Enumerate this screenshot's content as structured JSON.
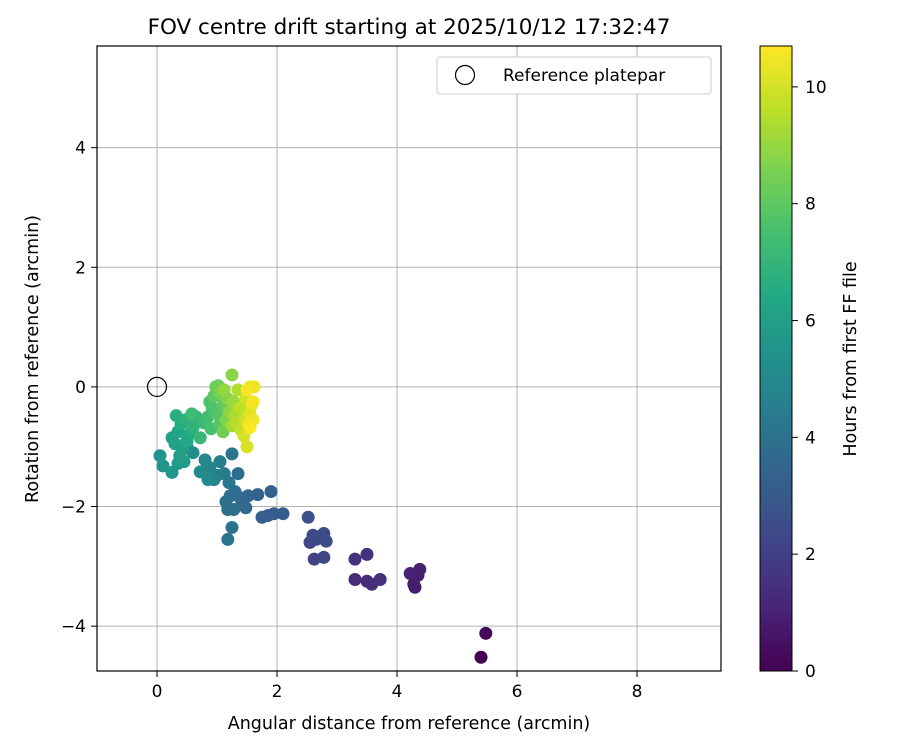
{
  "chart_data": {
    "type": "scatter",
    "title": "FOV centre drift starting at 2025/10/12 17:32:47",
    "xlabel": "Angular distance from reference (arcmin)",
    "ylabel": "Rotation from reference (arcmin)",
    "xlim": [
      -1.0,
      9.4
    ],
    "ylim": [
      -4.75,
      5.7
    ],
    "xticks": [
      0,
      2,
      4,
      6,
      8
    ],
    "yticks": [
      -4,
      -2,
      0,
      2,
      4
    ],
    "grid": true,
    "legend": {
      "label": "Reference platepar",
      "location": "top-right"
    },
    "reference_point": {
      "x": 0,
      "y": 0
    },
    "colorbar": {
      "label": "Hours from first FF file",
      "range": [
        0,
        10.7
      ],
      "ticks": [
        0,
        2,
        4,
        6,
        8,
        10
      ],
      "colormap": "viridis"
    },
    "points": [
      {
        "x": 5.4,
        "y": -4.52,
        "c": 0.0
      },
      {
        "x": 5.48,
        "y": -4.12,
        "c": 0.25
      },
      {
        "x": 4.3,
        "y": -3.35,
        "c": 0.8
      },
      {
        "x": 4.28,
        "y": -3.3,
        "c": 0.85
      },
      {
        "x": 4.35,
        "y": -3.15,
        "c": 0.9
      },
      {
        "x": 4.38,
        "y": -3.05,
        "c": 0.95
      },
      {
        "x": 4.22,
        "y": -3.12,
        "c": 1.0
      },
      {
        "x": 3.3,
        "y": -3.22,
        "c": 1.3
      },
      {
        "x": 3.5,
        "y": -3.25,
        "c": 1.35
      },
      {
        "x": 3.58,
        "y": -3.3,
        "c": 1.4
      },
      {
        "x": 3.72,
        "y": -3.22,
        "c": 1.45
      },
      {
        "x": 3.3,
        "y": -2.88,
        "c": 1.5
      },
      {
        "x": 3.5,
        "y": -2.8,
        "c": 1.55
      },
      {
        "x": 2.62,
        "y": -2.88,
        "c": 2.1
      },
      {
        "x": 2.78,
        "y": -2.85,
        "c": 2.15
      },
      {
        "x": 2.55,
        "y": -2.6,
        "c": 2.2
      },
      {
        "x": 2.65,
        "y": -2.55,
        "c": 2.3
      },
      {
        "x": 2.6,
        "y": -2.48,
        "c": 2.35
      },
      {
        "x": 2.78,
        "y": -2.45,
        "c": 2.4
      },
      {
        "x": 2.82,
        "y": -2.58,
        "c": 2.5
      },
      {
        "x": 2.52,
        "y": -2.18,
        "c": 2.6
      },
      {
        "x": 2.1,
        "y": -2.12,
        "c": 3.0
      },
      {
        "x": 1.95,
        "y": -2.12,
        "c": 3.1
      },
      {
        "x": 1.85,
        "y": -2.15,
        "c": 3.2
      },
      {
        "x": 1.75,
        "y": -2.18,
        "c": 3.25
      },
      {
        "x": 1.9,
        "y": -1.75,
        "c": 3.3
      },
      {
        "x": 1.68,
        "y": -1.8,
        "c": 3.4
      },
      {
        "x": 1.52,
        "y": -1.82,
        "c": 3.5
      },
      {
        "x": 1.42,
        "y": -1.95,
        "c": 3.6
      },
      {
        "x": 1.48,
        "y": -2.02,
        "c": 3.65
      },
      {
        "x": 1.38,
        "y": -1.85,
        "c": 3.7
      },
      {
        "x": 1.35,
        "y": -1.45,
        "c": 3.75
      },
      {
        "x": 1.3,
        "y": -1.75,
        "c": 3.8
      },
      {
        "x": 1.22,
        "y": -1.82,
        "c": 3.85
      },
      {
        "x": 1.15,
        "y": -1.92,
        "c": 3.9
      },
      {
        "x": 1.18,
        "y": -2.05,
        "c": 3.95
      },
      {
        "x": 1.28,
        "y": -2.05,
        "c": 4.0
      },
      {
        "x": 1.25,
        "y": -2.35,
        "c": 4.05
      },
      {
        "x": 1.18,
        "y": -2.55,
        "c": 4.1
      },
      {
        "x": 1.25,
        "y": -1.12,
        "c": 4.2
      },
      {
        "x": 1.2,
        "y": -1.6,
        "c": 4.3
      },
      {
        "x": 1.12,
        "y": -1.45,
        "c": 4.4
      },
      {
        "x": 1.05,
        "y": -1.25,
        "c": 4.5
      },
      {
        "x": 1.0,
        "y": -1.48,
        "c": 4.6
      },
      {
        "x": 0.95,
        "y": -1.55,
        "c": 4.7
      },
      {
        "x": 0.88,
        "y": -1.35,
        "c": 4.8
      },
      {
        "x": 0.8,
        "y": -1.22,
        "c": 4.9
      },
      {
        "x": 0.85,
        "y": -1.55,
        "c": 5.0
      },
      {
        "x": 0.72,
        "y": -1.42,
        "c": 5.1
      },
      {
        "x": 0.6,
        "y": -1.1,
        "c": 5.2
      },
      {
        "x": 0.5,
        "y": -1.0,
        "c": 5.3
      },
      {
        "x": 0.05,
        "y": -1.15,
        "c": 5.5
      },
      {
        "x": 0.1,
        "y": -1.32,
        "c": 5.55
      },
      {
        "x": 0.25,
        "y": -1.43,
        "c": 5.6
      },
      {
        "x": 0.35,
        "y": -1.28,
        "c": 5.7
      },
      {
        "x": 0.38,
        "y": -1.15,
        "c": 5.8
      },
      {
        "x": 0.45,
        "y": -1.25,
        "c": 5.9
      },
      {
        "x": 0.42,
        "y": -1.05,
        "c": 6.0
      },
      {
        "x": 0.3,
        "y": -0.95,
        "c": 6.1
      },
      {
        "x": 0.25,
        "y": -0.85,
        "c": 6.2
      },
      {
        "x": 0.35,
        "y": -0.75,
        "c": 6.3
      },
      {
        "x": 0.5,
        "y": -0.9,
        "c": 6.4
      },
      {
        "x": 0.55,
        "y": -0.78,
        "c": 6.5
      },
      {
        "x": 0.4,
        "y": -0.62,
        "c": 6.6
      },
      {
        "x": 0.32,
        "y": -0.48,
        "c": 6.7
      },
      {
        "x": 0.48,
        "y": -0.55,
        "c": 6.8
      },
      {
        "x": 0.6,
        "y": -0.68,
        "c": 6.9
      },
      {
        "x": 0.65,
        "y": -0.5,
        "c": 7.0
      },
      {
        "x": 0.72,
        "y": -0.85,
        "c": 7.1
      },
      {
        "x": 0.78,
        "y": -0.6,
        "c": 7.2
      },
      {
        "x": 0.58,
        "y": -0.45,
        "c": 7.3
      },
      {
        "x": 0.85,
        "y": -0.5,
        "c": 7.4
      },
      {
        "x": 0.9,
        "y": -0.7,
        "c": 7.5
      },
      {
        "x": 0.92,
        "y": -0.35,
        "c": 7.6
      },
      {
        "x": 0.88,
        "y": -0.25,
        "c": 7.7
      },
      {
        "x": 1.0,
        "y": -0.45,
        "c": 7.8
      },
      {
        "x": 1.05,
        "y": -0.62,
        "c": 7.9
      },
      {
        "x": 0.95,
        "y": -0.15,
        "c": 8.0
      },
      {
        "x": 1.1,
        "y": -0.3,
        "c": 8.1
      },
      {
        "x": 0.98,
        "y": 0.0,
        "c": 8.2
      },
      {
        "x": 1.02,
        "y": 0.02,
        "c": 8.3
      },
      {
        "x": 1.1,
        "y": -0.75,
        "c": 8.4
      },
      {
        "x": 1.05,
        "y": -0.1,
        "c": 8.5
      },
      {
        "x": 1.15,
        "y": -0.55,
        "c": 8.6
      },
      {
        "x": 1.18,
        "y": -0.2,
        "c": 8.7
      },
      {
        "x": 1.25,
        "y": 0.2,
        "c": 8.8
      },
      {
        "x": 1.2,
        "y": -0.42,
        "c": 8.9
      },
      {
        "x": 1.12,
        "y": -0.05,
        "c": 9.0
      },
      {
        "x": 1.28,
        "y": -0.25,
        "c": 9.1
      },
      {
        "x": 1.25,
        "y": -0.65,
        "c": 9.2
      },
      {
        "x": 1.3,
        "y": -0.48,
        "c": 9.3
      },
      {
        "x": 1.35,
        "y": -0.05,
        "c": 9.4
      },
      {
        "x": 1.32,
        "y": -0.6,
        "c": 9.5
      },
      {
        "x": 1.38,
        "y": -0.35,
        "c": 9.6
      },
      {
        "x": 1.4,
        "y": -0.72,
        "c": 9.7
      },
      {
        "x": 1.45,
        "y": -0.55,
        "c": 9.8
      },
      {
        "x": 1.48,
        "y": -0.2,
        "c": 9.9
      },
      {
        "x": 1.45,
        "y": -0.82,
        "c": 10.0
      },
      {
        "x": 1.5,
        "y": -1.0,
        "c": 10.1
      },
      {
        "x": 1.55,
        "y": -0.45,
        "c": 10.2
      },
      {
        "x": 1.52,
        "y": -0.62,
        "c": 10.3
      },
      {
        "x": 1.58,
        "y": -0.3,
        "c": 10.35
      },
      {
        "x": 1.55,
        "y": 0.0,
        "c": 10.4
      },
      {
        "x": 1.62,
        "y": 0.0,
        "c": 10.45
      },
      {
        "x": 1.6,
        "y": -0.55,
        "c": 10.5
      },
      {
        "x": 1.6,
        "y": -0.25,
        "c": 10.55
      },
      {
        "x": 1.5,
        "y": -0.05,
        "c": 10.6
      },
      {
        "x": 1.55,
        "y": -0.68,
        "c": 10.65
      }
    ]
  }
}
